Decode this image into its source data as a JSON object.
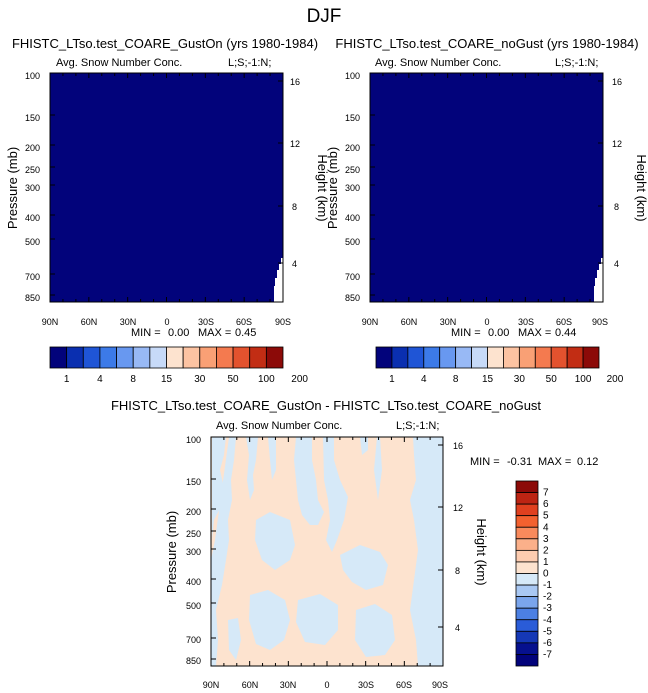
{
  "figure": {
    "season_title": "DJF",
    "variable_label": "Avg. Snow Number Conc.",
    "corner_label": "L;S;-1:N;",
    "y_axis_left": "Pressure (mb)",
    "y_axis_right": "Height (km)"
  },
  "colors": {
    "field_top": "#02037b",
    "diff_positive": "#fde3cf",
    "diff_negative": "#d6e9f8"
  },
  "chart_data": [
    {
      "type": "heatmap",
      "id": "panel-gust-on",
      "title": "FHISTC_LTso.test_COARE_GustOn (yrs 1980-1984)",
      "xlabel": "",
      "ylabel": "Pressure (mb)",
      "ylabel_right": "Height (km)",
      "x_ticks": [
        "90N",
        "60N",
        "30N",
        "0",
        "30S",
        "60S",
        "90S"
      ],
      "y_ticks": [
        "100",
        "150",
        "200",
        "250",
        "300",
        "400",
        "500",
        "700",
        "850"
      ],
      "y_right_ticks": [
        "16",
        "12",
        "8",
        "4"
      ],
      "min_label": "MIN =",
      "min": "0.00",
      "max_label": "MAX =",
      "max": "0.45",
      "field": "near-zero everywhere (lowest color bin)"
    },
    {
      "type": "heatmap",
      "id": "panel-no-gust",
      "title": "FHISTC_LTso.test_COARE_noGust (yrs 1980-1984)",
      "xlabel": "",
      "ylabel": "Pressure (mb)",
      "ylabel_right": "Height (km)",
      "x_ticks": [
        "90N",
        "60N",
        "30N",
        "0",
        "30S",
        "60S",
        "90S"
      ],
      "y_ticks": [
        "100",
        "150",
        "200",
        "250",
        "300",
        "400",
        "500",
        "700",
        "850"
      ],
      "y_right_ticks": [
        "16",
        "12",
        "8",
        "4"
      ],
      "min_label": "MIN =",
      "min": "0.00",
      "max_label": "MAX =",
      "max": "0.44",
      "field": "near-zero everywhere (lowest color bin)"
    },
    {
      "type": "heatmap",
      "id": "panel-difference",
      "title": "FHISTC_LTso.test_COARE_GustOn - FHISTC_LTso.test_COARE_noGust",
      "xlabel": "",
      "ylabel": "Pressure (mb)",
      "ylabel_right": "Height (km)",
      "x_ticks": [
        "90N",
        "60N",
        "30N",
        "0",
        "30S",
        "60S",
        "90S"
      ],
      "y_ticks": [
        "100",
        "150",
        "200",
        "250",
        "300",
        "400",
        "500",
        "700",
        "850"
      ],
      "y_right_ticks": [
        "16",
        "12",
        "8",
        "4"
      ],
      "min_label": "MIN =",
      "min": "-0.31",
      "max_label": "MAX =",
      "max": "0.12",
      "field": "mix of 0 to 1 and -1 to 0 bins"
    }
  ],
  "colorbar_top": {
    "labels": [
      "1",
      "4",
      "8",
      "15",
      "30",
      "50",
      "100",
      "200"
    ],
    "colors": [
      "#02037b",
      "#0a2fb0",
      "#1f55d6",
      "#3c7ae8",
      "#6898f0",
      "#98b9f5",
      "#c7daf8",
      "#fde3cf",
      "#fcc3a2",
      "#f9a075",
      "#f47a4f",
      "#e3522e",
      "#c22d14",
      "#8c0a08"
    ]
  },
  "colorbar_diff": {
    "labels": [
      "7",
      "6",
      "5",
      "4",
      "3",
      "2",
      "1",
      "0",
      "-1",
      "-2",
      "-3",
      "-4",
      "-5",
      "-6",
      "-7"
    ],
    "colors": [
      "#8c0a08",
      "#bd2413",
      "#e0401f",
      "#f3612f",
      "#f98a5c",
      "#fbb08a",
      "#fdccb0",
      "#fde3cf",
      "#d6e9f8",
      "#a9c8f3",
      "#7aa5ec",
      "#4c80e3",
      "#2a5cd8",
      "#1538b6",
      "#06108e",
      "#02037b"
    ]
  }
}
